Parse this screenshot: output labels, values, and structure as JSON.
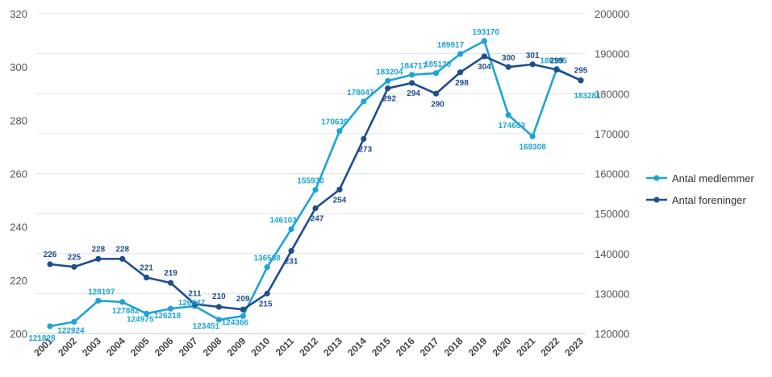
{
  "chart_data": {
    "type": "line",
    "title": "",
    "xlabel": "",
    "ylabel_left": "",
    "ylabel_right": "",
    "categories": [
      "2001",
      "2002",
      "2003",
      "2004",
      "2005",
      "2006",
      "2007",
      "2008",
      "2009",
      "2010",
      "2011",
      "2012",
      "2013",
      "2014",
      "2015",
      "2016",
      "2017",
      "2018",
      "2019",
      "2020",
      "2021",
      "2022",
      "2023"
    ],
    "y_left": {
      "min": 200,
      "max": 320,
      "ticks": [
        "200",
        "220",
        "240",
        "260",
        "280",
        "300",
        "320"
      ]
    },
    "y_right": {
      "min": 120000,
      "max": 200000,
      "ticks": [
        "120000",
        "130000",
        "140000",
        "150000",
        "160000",
        "170000",
        "180000",
        "190000",
        "200000"
      ]
    },
    "grid": true,
    "legend_position": "right",
    "series": [
      {
        "name": "Antal medlemmer",
        "axis": "right",
        "color": "#1ea3d6",
        "values": [
          121828,
          122924,
          128197,
          127882,
          124975,
          126218,
          126847,
          123451,
          124366,
          136588,
          146103,
          155930,
          170639,
          178047,
          183204,
          184717,
          185130,
          189917,
          193170,
          174653,
          169308,
          186185,
          183281
        ],
        "labels": [
          "121828",
          "122924",
          "128197",
          "127882",
          "124975",
          "126218",
          "126847",
          "123451",
          "124366",
          "136588",
          "146103",
          "155930",
          "170639",
          "178047",
          "183204",
          "184717",
          "185130",
          "189917",
          "193170",
          "174653",
          "169308",
          "186185",
          "183281"
        ]
      },
      {
        "name": "Antal foreninger",
        "axis": "left",
        "color": "#1f4e8c",
        "values": [
          226,
          225,
          228,
          228,
          221,
          219,
          211,
          210,
          209,
          215,
          231,
          247,
          254,
          273,
          292,
          294,
          290,
          298,
          304,
          300,
          301,
          299,
          295
        ],
        "labels": [
          "226",
          "225",
          "228",
          "228",
          "221",
          "219",
          "211",
          "210",
          "209",
          "215",
          "231",
          "247",
          "254",
          "273",
          "292",
          "294",
          "290",
          "298",
          "304",
          "300",
          "301",
          "299",
          "295"
        ]
      }
    ]
  }
}
